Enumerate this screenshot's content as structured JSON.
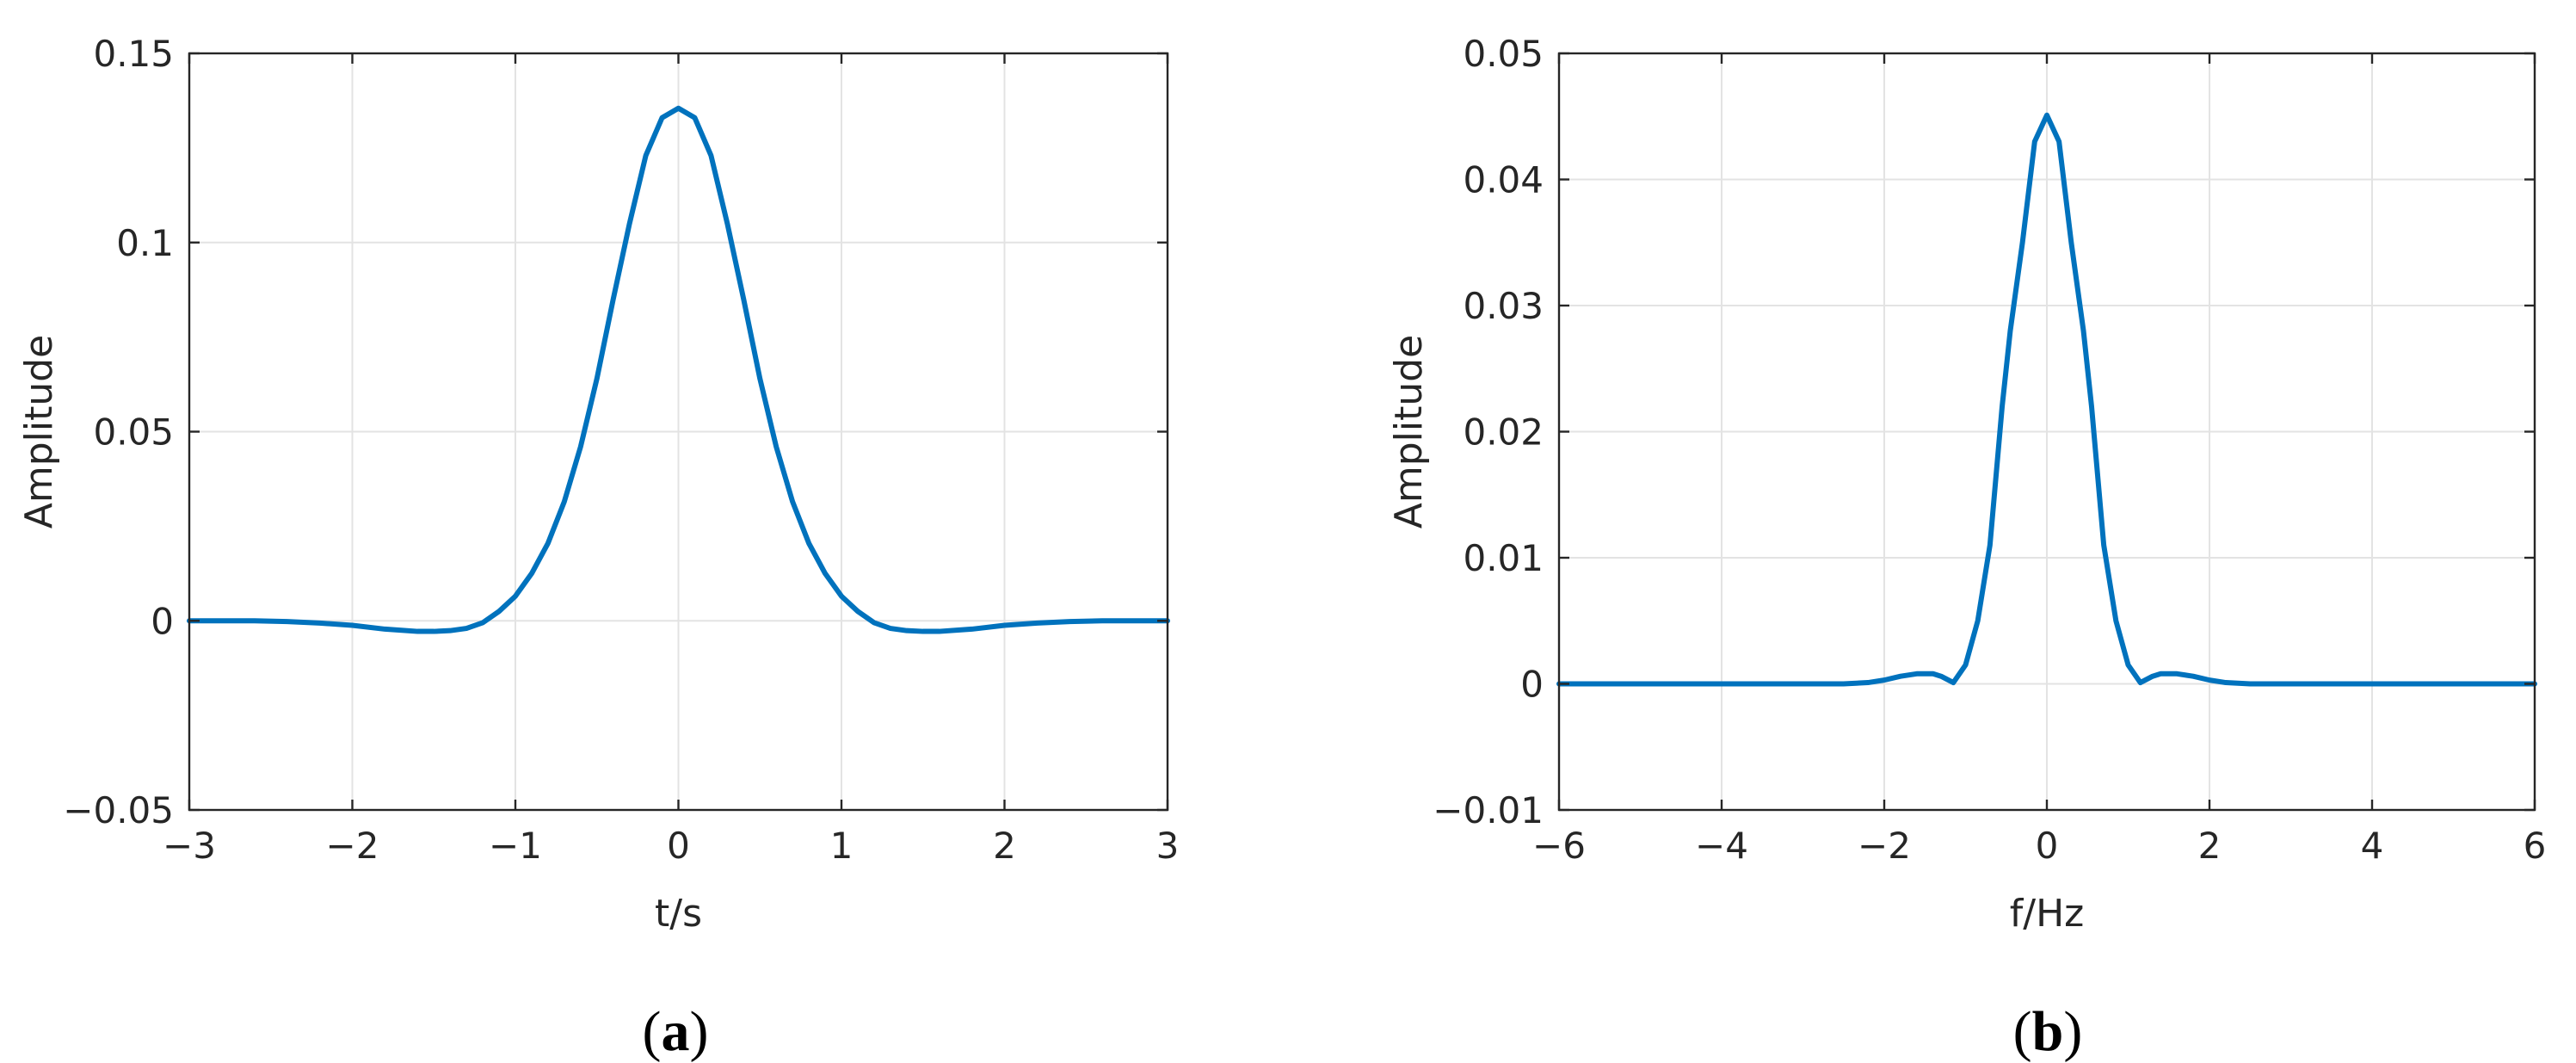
{
  "chart_data": [
    {
      "type": "line",
      "panel_label": "(a)",
      "panel_label_letter": "a",
      "title": "",
      "xlabel": "t/s",
      "ylabel": "Amplitude",
      "xlim": [
        -3,
        3
      ],
      "ylim": [
        -0.05,
        0.15
      ],
      "xticks": [
        -3,
        -2,
        -1,
        0,
        1,
        2,
        3
      ],
      "xtick_labels": [
        "−3",
        "−2",
        "−1",
        "0",
        "1",
        "2",
        "3"
      ],
      "yticks": [
        -0.05,
        0,
        0.05,
        0.1,
        0.15
      ],
      "ytick_labels": [
        "−0.05",
        "0",
        "0.05",
        "0.1",
        "0.15"
      ],
      "grid": true,
      "color": "#0072bd",
      "series": [
        {
          "x": [
            -3,
            -2.8,
            -2.6,
            -2.4,
            -2.2,
            -2.0,
            -1.8,
            -1.6,
            -1.5,
            -1.4,
            -1.3,
            -1.2,
            -1.1,
            -1.0,
            -0.9,
            -0.8,
            -0.7,
            -0.6,
            -0.5,
            -0.4,
            -0.3,
            -0.2,
            -0.1,
            0,
            0.1,
            0.2,
            0.3,
            0.4,
            0.5,
            0.6,
            0.7,
            0.8,
            0.9,
            1.0,
            1.1,
            1.2,
            1.3,
            1.4,
            1.5,
            1.6,
            1.8,
            2.0,
            2.2,
            2.4,
            2.6,
            2.8,
            3.0
          ],
          "y": [
            0.0,
            0.0,
            0.0,
            -0.0002,
            -0.0006,
            -0.0012,
            -0.0022,
            -0.0028,
            -0.0028,
            -0.0026,
            -0.002,
            -0.0005,
            0.0025,
            0.0065,
            0.0125,
            0.0205,
            0.0315,
            0.046,
            0.064,
            0.085,
            0.105,
            0.123,
            0.133,
            0.1355,
            0.133,
            0.123,
            0.105,
            0.085,
            0.064,
            0.046,
            0.0315,
            0.0205,
            0.0125,
            0.0065,
            0.0025,
            -0.0005,
            -0.002,
            -0.0026,
            -0.0028,
            -0.0028,
            -0.0022,
            -0.0012,
            -0.0006,
            -0.0002,
            0.0,
            0.0,
            0.0
          ]
        }
      ]
    },
    {
      "type": "line",
      "panel_label": "(b)",
      "panel_label_letter": "b",
      "title": "",
      "xlabel": "f/Hz",
      "ylabel": "Amplitude",
      "xlim": [
        -6,
        6
      ],
      "ylim": [
        -0.01,
        0.05
      ],
      "xticks": [
        -6,
        -4,
        -2,
        0,
        2,
        4,
        6
      ],
      "xtick_labels": [
        "−6",
        "−4",
        "−2",
        "0",
        "2",
        "4",
        "6"
      ],
      "yticks": [
        -0.01,
        0,
        0.01,
        0.02,
        0.03,
        0.04,
        0.05
      ],
      "ytick_labels": [
        "−0.01",
        "0",
        "0.01",
        "0.02",
        "0.03",
        "0.04",
        "0.05"
      ],
      "grid": true,
      "color": "#0072bd",
      "series": [
        {
          "x": [
            -6,
            -2.5,
            -2.2,
            -2.0,
            -1.8,
            -1.6,
            -1.4,
            -1.3,
            -1.15,
            -1.0,
            -0.85,
            -0.7,
            -0.55,
            -0.45,
            -0.3,
            -0.15,
            0,
            0.15,
            0.3,
            0.45,
            0.55,
            0.7,
            0.85,
            1.0,
            1.15,
            1.3,
            1.4,
            1.6,
            1.8,
            2.0,
            2.2,
            2.5,
            6
          ],
          "y": [
            0.0,
            0.0,
            0.0001,
            0.0003,
            0.0006,
            0.0008,
            0.0008,
            0.0006,
            0.0001,
            0.0015,
            0.005,
            0.011,
            0.022,
            0.028,
            0.035,
            0.043,
            0.0451,
            0.043,
            0.035,
            0.028,
            0.022,
            0.011,
            0.005,
            0.0015,
            0.0001,
            0.0006,
            0.0008,
            0.0008,
            0.0006,
            0.0003,
            0.0001,
            0.0,
            0.0
          ]
        }
      ]
    }
  ]
}
